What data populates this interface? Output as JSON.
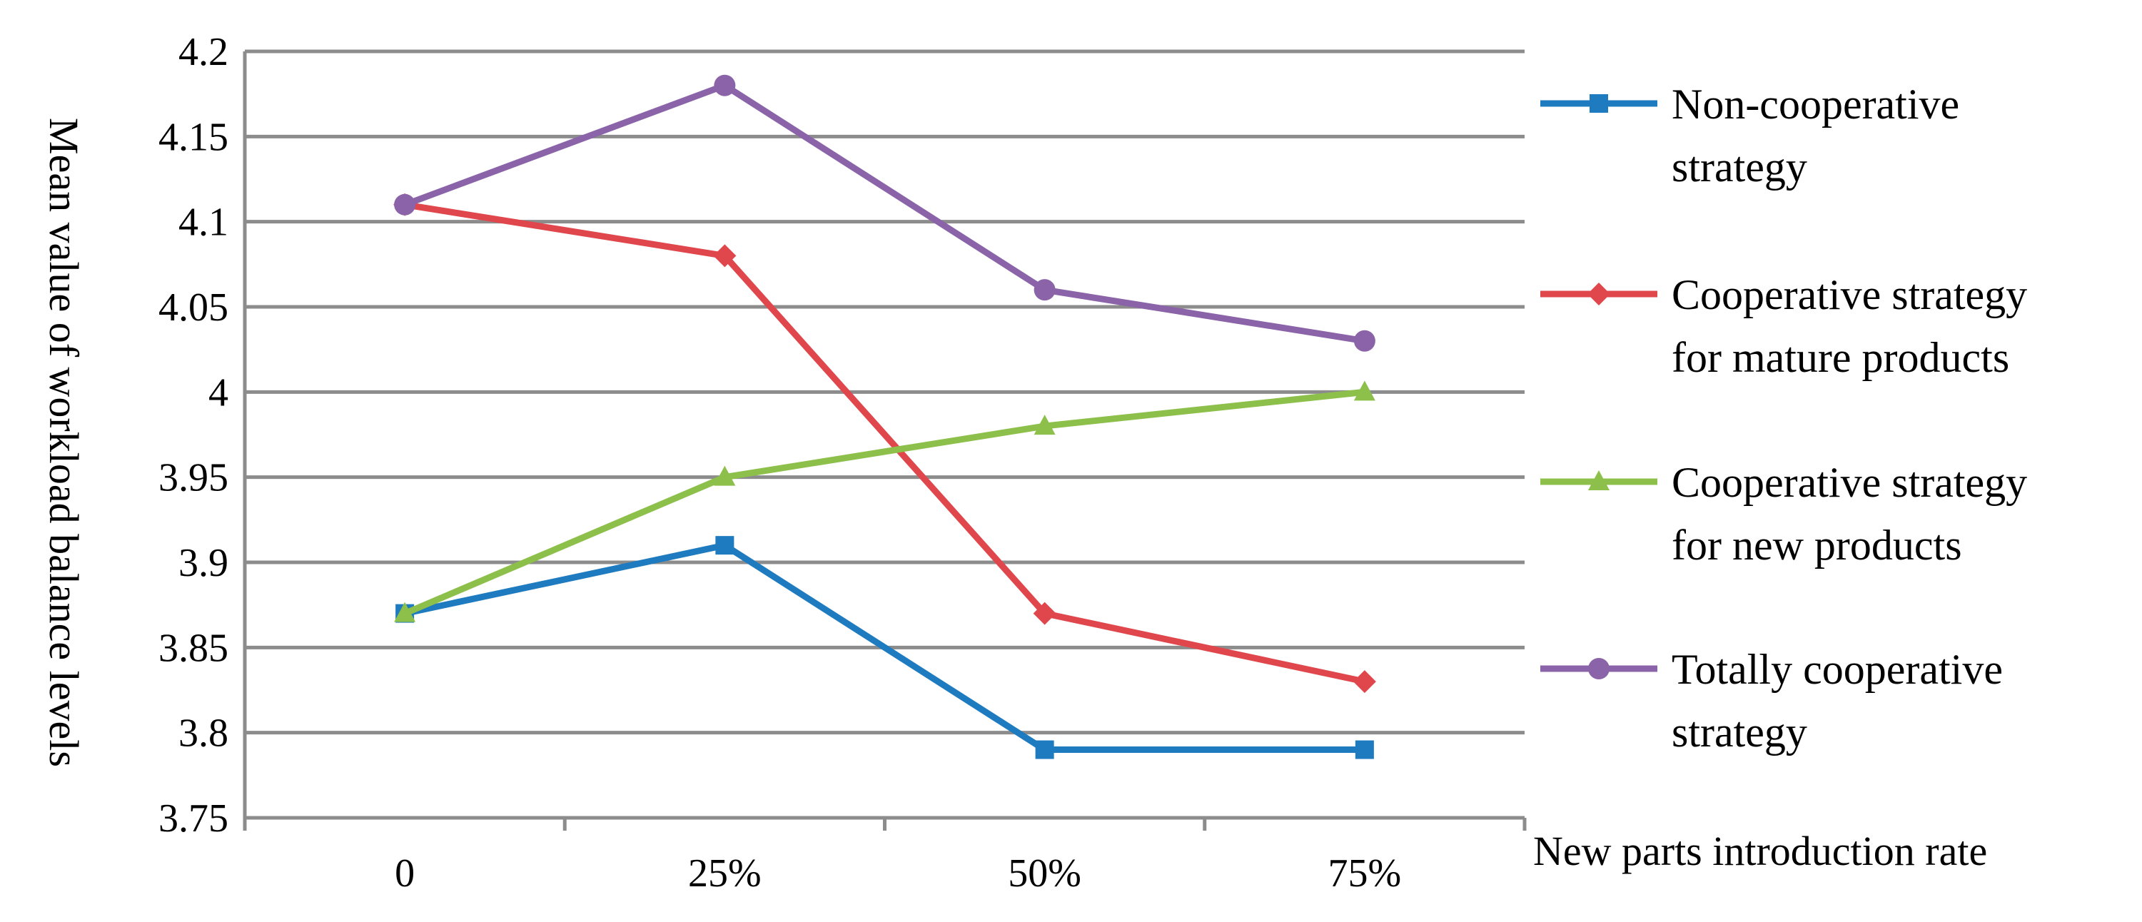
{
  "chart_data": {
    "type": "line",
    "title": "",
    "xlabel": "New parts introduction rate",
    "ylabel": "Mean value of workload balance levels",
    "categories": [
      "0",
      "25%",
      "50%",
      "75%"
    ],
    "ylim": [
      3.75,
      4.2
    ],
    "yticks": [
      "3.75",
      "3.8",
      "3.85",
      "3.9",
      "3.95",
      "4",
      "4.05",
      "4.1",
      "4.15",
      "4.2"
    ],
    "grid": "horizontal",
    "legend_position": "right",
    "series": [
      {
        "name": "Non-cooperative strategy",
        "label_lines": [
          "Non-cooperative",
          "strategy"
        ],
        "color": "#1F7BBF",
        "marker": "square",
        "values": [
          3.87,
          3.91,
          3.79,
          3.79
        ]
      },
      {
        "name": "Cooperative strategy for mature products",
        "label_lines": [
          "Cooperative strategy",
          "for mature products"
        ],
        "color": "#E0474C",
        "marker": "diamond",
        "values": [
          4.11,
          4.08,
          3.87,
          3.83
        ]
      },
      {
        "name": "Cooperative strategy for new products",
        "label_lines": [
          "Cooperative strategy",
          "for new products"
        ],
        "color": "#8DC04B",
        "marker": "triangle",
        "values": [
          3.87,
          3.95,
          3.98,
          4.0
        ]
      },
      {
        "name": "Totally cooperative strategy",
        "label_lines": [
          "Totally cooperative",
          "strategy"
        ],
        "color": "#8A63A8",
        "marker": "circle",
        "values": [
          4.11,
          4.18,
          4.06,
          4.03
        ]
      }
    ]
  }
}
